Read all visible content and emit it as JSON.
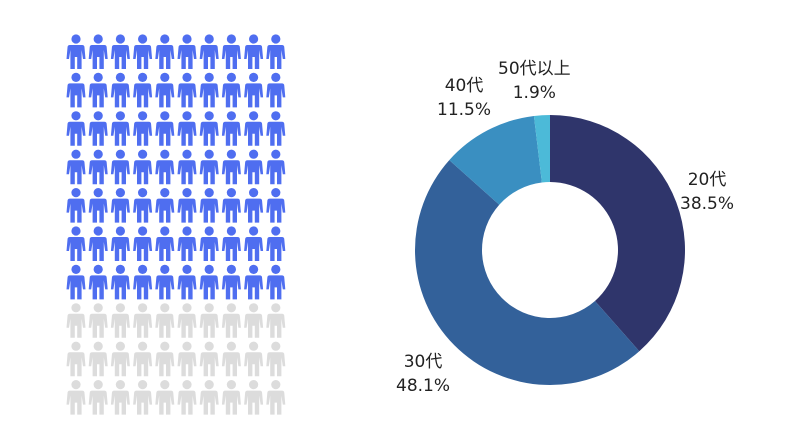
{
  "pictogram": {
    "total": 100,
    "highlighted": 70,
    "columns": 10,
    "highlight_color": "#4f6ef0",
    "base_color": "#dcdcdc",
    "icon": "person-icon"
  },
  "chart_data": {
    "type": "pie",
    "variant": "donut",
    "title": "",
    "start": "top",
    "direction": "clockwise",
    "slices": [
      {
        "name": "20代",
        "label": "38.5%",
        "value": 38.5,
        "color": "#2f356b"
      },
      {
        "name": "30代",
        "label": "48.1%",
        "value": 48.1,
        "color": "#33619a"
      },
      {
        "name": "40代",
        "label": "11.5%",
        "value": 11.5,
        "color": "#3a8fc1"
      },
      {
        "name": "50代以上",
        "label": "1.9%",
        "value": 1.9,
        "color": "#4cbad8"
      }
    ]
  }
}
